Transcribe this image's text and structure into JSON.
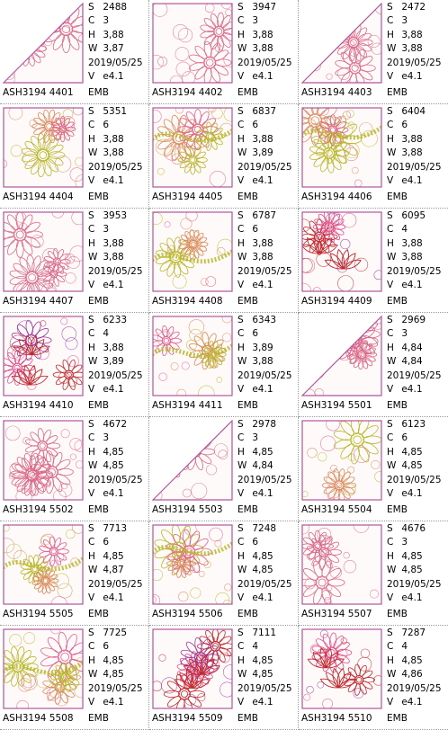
{
  "colors": {
    "outline": "#b0559a",
    "pink": "#d9457a",
    "red": "#c0282c",
    "olive": "#b8b82a",
    "tan": "#d8a060",
    "grid": "#9a9a9a"
  },
  "cells": [
    {
      "name": "ASH3194  4401",
      "format": "EMB",
      "shape": "triangle",
      "palette": [
        "#d96a8a"
      ],
      "s": "2488",
      "c": "3",
      "h": "3,88",
      "w": "3,87",
      "date": "2019/05/25",
      "v": "e4.1"
    },
    {
      "name": "ASH3194  4402",
      "format": "EMB",
      "shape": "square",
      "palette": [
        "#d96a8a"
      ],
      "s": "3947",
      "c": "3",
      "h": "3,88",
      "w": "3,88",
      "date": "2019/05/25",
      "v": "e4.1"
    },
    {
      "name": "ASH3194  4403",
      "format": "EMB",
      "shape": "triangle",
      "palette": [
        "#d96a8a"
      ],
      "s": "2472",
      "c": "3",
      "h": "3,88",
      "w": "3,88",
      "date": "2019/05/25",
      "v": "e4.1"
    },
    {
      "name": "ASH3194  4404",
      "format": "EMB",
      "shape": "square",
      "palette": [
        "#d98a5a",
        "#b8b82a",
        "#e06090"
      ],
      "s": "5351",
      "c": "6",
      "h": "3,88",
      "w": "3,88",
      "date": "2019/05/25",
      "v": "e4.1"
    },
    {
      "name": "ASH3194  4405",
      "format": "EMB",
      "shape": "square",
      "palette": [
        "#b8b82a",
        "#d98a5a",
        "#e06090"
      ],
      "s": "6837",
      "c": "6",
      "h": "3,88",
      "w": "3,89",
      "date": "2019/05/25",
      "v": "e4.1"
    },
    {
      "name": "ASH3194  4406",
      "format": "EMB",
      "shape": "square",
      "palette": [
        "#b8b82a",
        "#d98a5a",
        "#e06090"
      ],
      "s": "6404",
      "c": "6",
      "h": "3,88",
      "w": "3,88",
      "date": "2019/05/25",
      "v": "e4.1"
    },
    {
      "name": "ASH3194  4407",
      "format": "EMB",
      "shape": "square",
      "palette": [
        "#d96a8a"
      ],
      "s": "3953",
      "c": "3",
      "h": "3,88",
      "w": "3,88",
      "date": "2019/05/25",
      "v": "e4.1"
    },
    {
      "name": "ASH3194  4408",
      "format": "EMB",
      "shape": "square",
      "palette": [
        "#b8b82a",
        "#d98a5a",
        "#e06090"
      ],
      "s": "6787",
      "c": "6",
      "h": "3,88",
      "w": "3,88",
      "date": "2019/05/25",
      "v": "e4.1"
    },
    {
      "name": "ASH3194  4409",
      "format": "EMB",
      "shape": "square",
      "palette": [
        "#c0282c",
        "#e0508a",
        "#9a3aa0"
      ],
      "s": "6095",
      "c": "4",
      "h": "3,88",
      "w": "3,88",
      "date": "2019/05/25",
      "v": "e4.1"
    },
    {
      "name": "ASH3194  4410",
      "format": "EMB",
      "shape": "square",
      "palette": [
        "#c0282c",
        "#e0508a",
        "#9a3aa0"
      ],
      "s": "6233",
      "c": "4",
      "h": "3,88",
      "w": "3,89",
      "date": "2019/05/25",
      "v": "e4.1"
    },
    {
      "name": "ASH3194  4411",
      "format": "EMB",
      "shape": "square",
      "palette": [
        "#b8b82a",
        "#d98a5a",
        "#e06090"
      ],
      "s": "6343",
      "c": "6",
      "h": "3,89",
      "w": "3,88",
      "date": "2019/05/25",
      "v": "e4.1"
    },
    {
      "name": "ASH3194  5501",
      "format": "EMB",
      "shape": "triangle",
      "palette": [
        "#d96a8a"
      ],
      "s": "2969",
      "c": "3",
      "h": "4,84",
      "w": "4,84",
      "date": "2019/05/25",
      "v": "e4.1"
    },
    {
      "name": "ASH3194  5502",
      "format": "EMB",
      "shape": "square",
      "palette": [
        "#d96a8a"
      ],
      "s": "4672",
      "c": "3",
      "h": "4,85",
      "w": "4,85",
      "date": "2019/05/25",
      "v": "e4.1"
    },
    {
      "name": "ASH3194  5503",
      "format": "EMB",
      "shape": "triangle",
      "palette": [
        "#d96a8a"
      ],
      "s": "2978",
      "c": "3",
      "h": "4,85",
      "w": "4,84",
      "date": "2019/05/25",
      "v": "e4.1"
    },
    {
      "name": "ASH3194  5504",
      "format": "EMB",
      "shape": "square",
      "palette": [
        "#d98a5a",
        "#b8b82a",
        "#e06090"
      ],
      "s": "6123",
      "c": "6",
      "h": "4,85",
      "w": "4,85",
      "date": "2019/05/25",
      "v": "e4.1"
    },
    {
      "name": "ASH3194  5505",
      "format": "EMB",
      "shape": "square",
      "palette": [
        "#b8b82a",
        "#d98a5a",
        "#e06090"
      ],
      "s": "7713",
      "c": "6",
      "h": "4,85",
      "w": "4,87",
      "date": "2019/05/25",
      "v": "e4.1"
    },
    {
      "name": "ASH3194  5506",
      "format": "EMB",
      "shape": "square",
      "palette": [
        "#b8b82a",
        "#d98a5a",
        "#e06090"
      ],
      "s": "7248",
      "c": "6",
      "h": "4,85",
      "w": "4,85",
      "date": "2019/05/25",
      "v": "e4.1"
    },
    {
      "name": "ASH3194  5507",
      "format": "EMB",
      "shape": "square",
      "palette": [
        "#d96a8a"
      ],
      "s": "4676",
      "c": "3",
      "h": "4,85",
      "w": "4,85",
      "date": "2019/05/25",
      "v": "e4.1"
    },
    {
      "name": "ASH3194  5508",
      "format": "EMB",
      "shape": "square",
      "palette": [
        "#b8b82a",
        "#d98a5a",
        "#e06090"
      ],
      "s": "7725",
      "c": "6",
      "h": "4,85",
      "w": "4,85",
      "date": "2019/05/25",
      "v": "e4.1"
    },
    {
      "name": "ASH3194  5509",
      "format": "EMB",
      "shape": "square",
      "palette": [
        "#c0282c",
        "#e0508a",
        "#9a3aa0"
      ],
      "s": "7111",
      "c": "4",
      "h": "4,85",
      "w": "4,85",
      "date": "2019/05/25",
      "v": "e4.1"
    },
    {
      "name": "ASH3194  5510",
      "format": "EMB",
      "shape": "square",
      "palette": [
        "#c0282c",
        "#e0508a",
        "#9a3aa0"
      ],
      "s": "7287",
      "c": "4",
      "h": "4,85",
      "w": "4,86",
      "date": "2019/05/25",
      "v": "e4.1"
    }
  ]
}
